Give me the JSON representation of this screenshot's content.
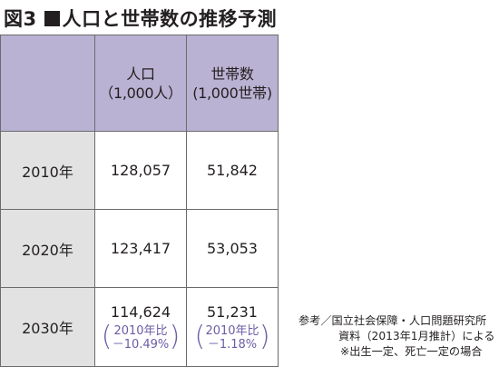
{
  "figure": {
    "label": "図3",
    "title": "人口と世帯数の推移予測"
  },
  "table": {
    "headers": [
      {
        "line1": "人口",
        "line2": "（1,000人）"
      },
      {
        "line1": "世帯数",
        "line2": "(1,000世帯)"
      }
    ],
    "rows": [
      {
        "year": "2010年",
        "population": "128,057",
        "households": "51,842"
      },
      {
        "year": "2020年",
        "population": "123,417",
        "households": "53,053"
      },
      {
        "year": "2030年",
        "population": "114,624",
        "households": "51,231",
        "population_change": {
          "label": "2010年比",
          "value": "－10.49%"
        },
        "households_change": {
          "label": "2010年比",
          "value": "－1.18%"
        }
      }
    ]
  },
  "source_note": {
    "line1": "参考／国立社会保障・人口問題研究所",
    "line2": "資料（2013年1月推計）による",
    "line3": "※出生一定、死亡一定の場合"
  },
  "colors": {
    "header_bg": "#b9b2d2",
    "year_bg": "#e2e2e2",
    "change_text": "#6d5ca6"
  }
}
